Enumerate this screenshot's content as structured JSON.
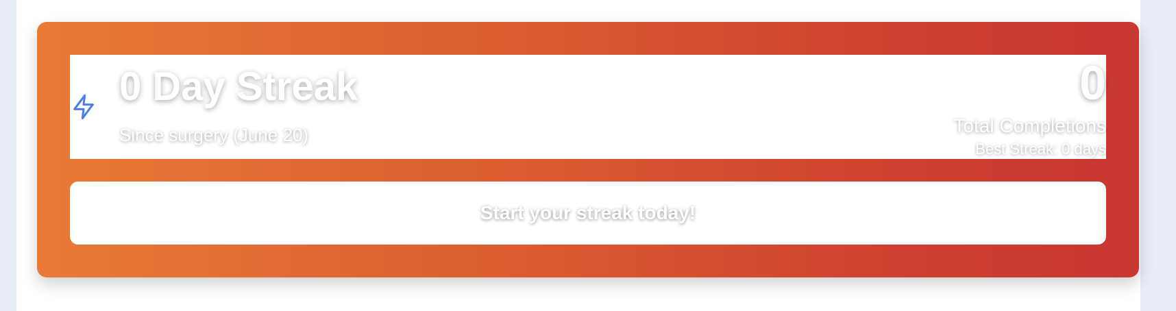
{
  "streak": {
    "title": "0 Day Streak",
    "subtitle": "Since surgery (June 20)",
    "icon": "lightning-bolt-icon",
    "total_value": "0",
    "total_label": "Total Completions",
    "best_streak": "Best Streak: 0 days",
    "cta": "Start your streak today!"
  },
  "colors": {
    "gradient_start": "#e87a36",
    "gradient_end": "#c83731",
    "icon": "#4a7cf0",
    "background": "#e9ecf9"
  }
}
